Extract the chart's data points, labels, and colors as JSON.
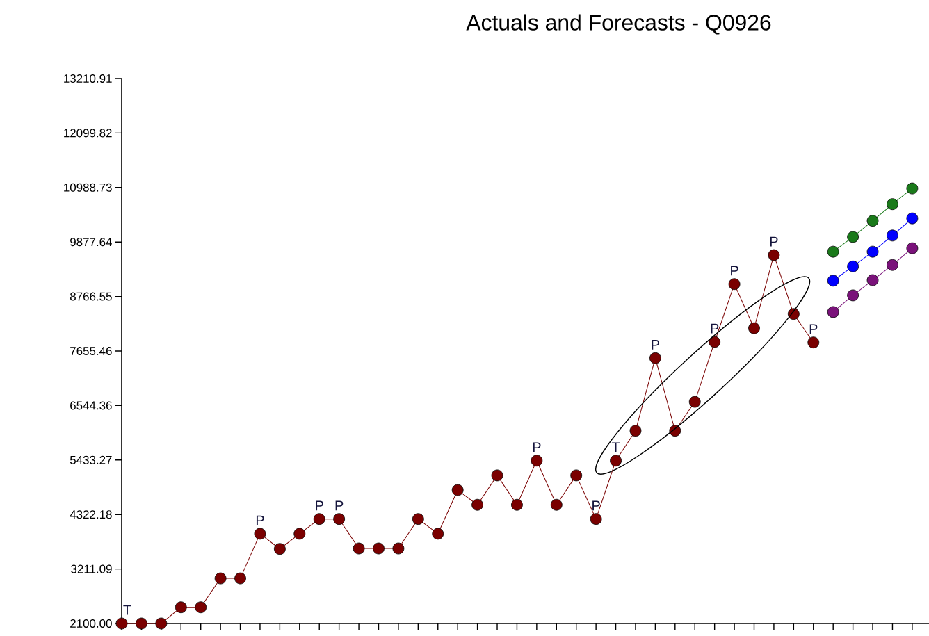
{
  "chart_data": {
    "type": "line",
    "title": "Actuals and Forecasts - Q0926",
    "categories": [
      null,
      null,
      null,
      null,
      null,
      null,
      null,
      null,
      null,
      null,
      null,
      null,
      null,
      null,
      null,
      null,
      null,
      null,
      null,
      null,
      null,
      null,
      null,
      null,
      null,
      null,
      null,
      null,
      null,
      null,
      null,
      null,
      null,
      null,
      null,
      null,
      null,
      null,
      null,
      null,
      null
    ],
    "ylim": [
      2100,
      13210.91
    ],
    "yticks": [
      {
        "value": 2100,
        "label": "2100.00"
      },
      3211.09,
      4322.18,
      5433.27,
      6544.36,
      7655.46,
      8766.55,
      9877.64,
      10988.73,
      12099.82,
      13210.91
    ],
    "tick_labels": "y",
    "marker": "circle",
    "line_style": "solid",
    "series": [
      {
        "color": "#7a0000",
        "values": [
          2100,
          2100,
          2100,
          2430,
          2430,
          3020,
          3020,
          3930,
          3620,
          3930,
          4230,
          4230,
          3630,
          3630,
          3630,
          4230,
          3930,
          4820,
          4520,
          5120,
          4520,
          5420,
          4520,
          5120,
          4230,
          5420,
          6030,
          7510,
          6030,
          6620,
          7840,
          9020,
          8120,
          9610,
          8410,
          7830,
          null,
          null,
          null,
          null,
          null
        ]
      },
      {
        "color": "#1a7a1a",
        "values": [
          null,
          null,
          null,
          null,
          null,
          null,
          null,
          null,
          null,
          null,
          null,
          null,
          null,
          null,
          null,
          null,
          null,
          null,
          null,
          null,
          null,
          null,
          null,
          null,
          null,
          null,
          null,
          null,
          null,
          null,
          null,
          null,
          null,
          null,
          null,
          null,
          9680,
          9980,
          10310,
          10650,
          10970
        ]
      },
      {
        "color": "#0000ff",
        "values": [
          null,
          null,
          null,
          null,
          null,
          null,
          null,
          null,
          null,
          null,
          null,
          null,
          null,
          null,
          null,
          null,
          null,
          null,
          null,
          null,
          null,
          null,
          null,
          null,
          null,
          null,
          null,
          null,
          null,
          null,
          null,
          null,
          null,
          null,
          null,
          null,
          9090,
          9380,
          9680,
          10010,
          10360
        ]
      },
      {
        "color": "#7a127a",
        "values": [
          null,
          null,
          null,
          null,
          null,
          null,
          null,
          null,
          null,
          null,
          null,
          null,
          null,
          null,
          null,
          null,
          null,
          null,
          null,
          null,
          null,
          null,
          null,
          null,
          null,
          null,
          null,
          null,
          null,
          null,
          null,
          null,
          null,
          null,
          null,
          null,
          8450,
          8790,
          9100,
          9410,
          9750
        ]
      }
    ],
    "annotations": [
      {
        "text": "T",
        "y": 2100
      },
      {
        "text": "P",
        "y": 3930
      },
      {
        "text": "P",
        "y": 4230
      },
      {
        "text": "P",
        "y": 4230
      },
      {
        "text": "P",
        "y": 5420
      },
      {
        "text": "P",
        "y": 4230
      },
      {
        "text": "T",
        "y": 5420
      },
      {
        "text": "P",
        "y": 7510
      },
      {
        "text": "P",
        "y": 7840
      },
      {
        "text": "P",
        "y": 9020
      },
      {
        "text": "P",
        "y": 9610
      },
      {
        "text": "P",
        "y": 7830
      }
    ]
  }
}
